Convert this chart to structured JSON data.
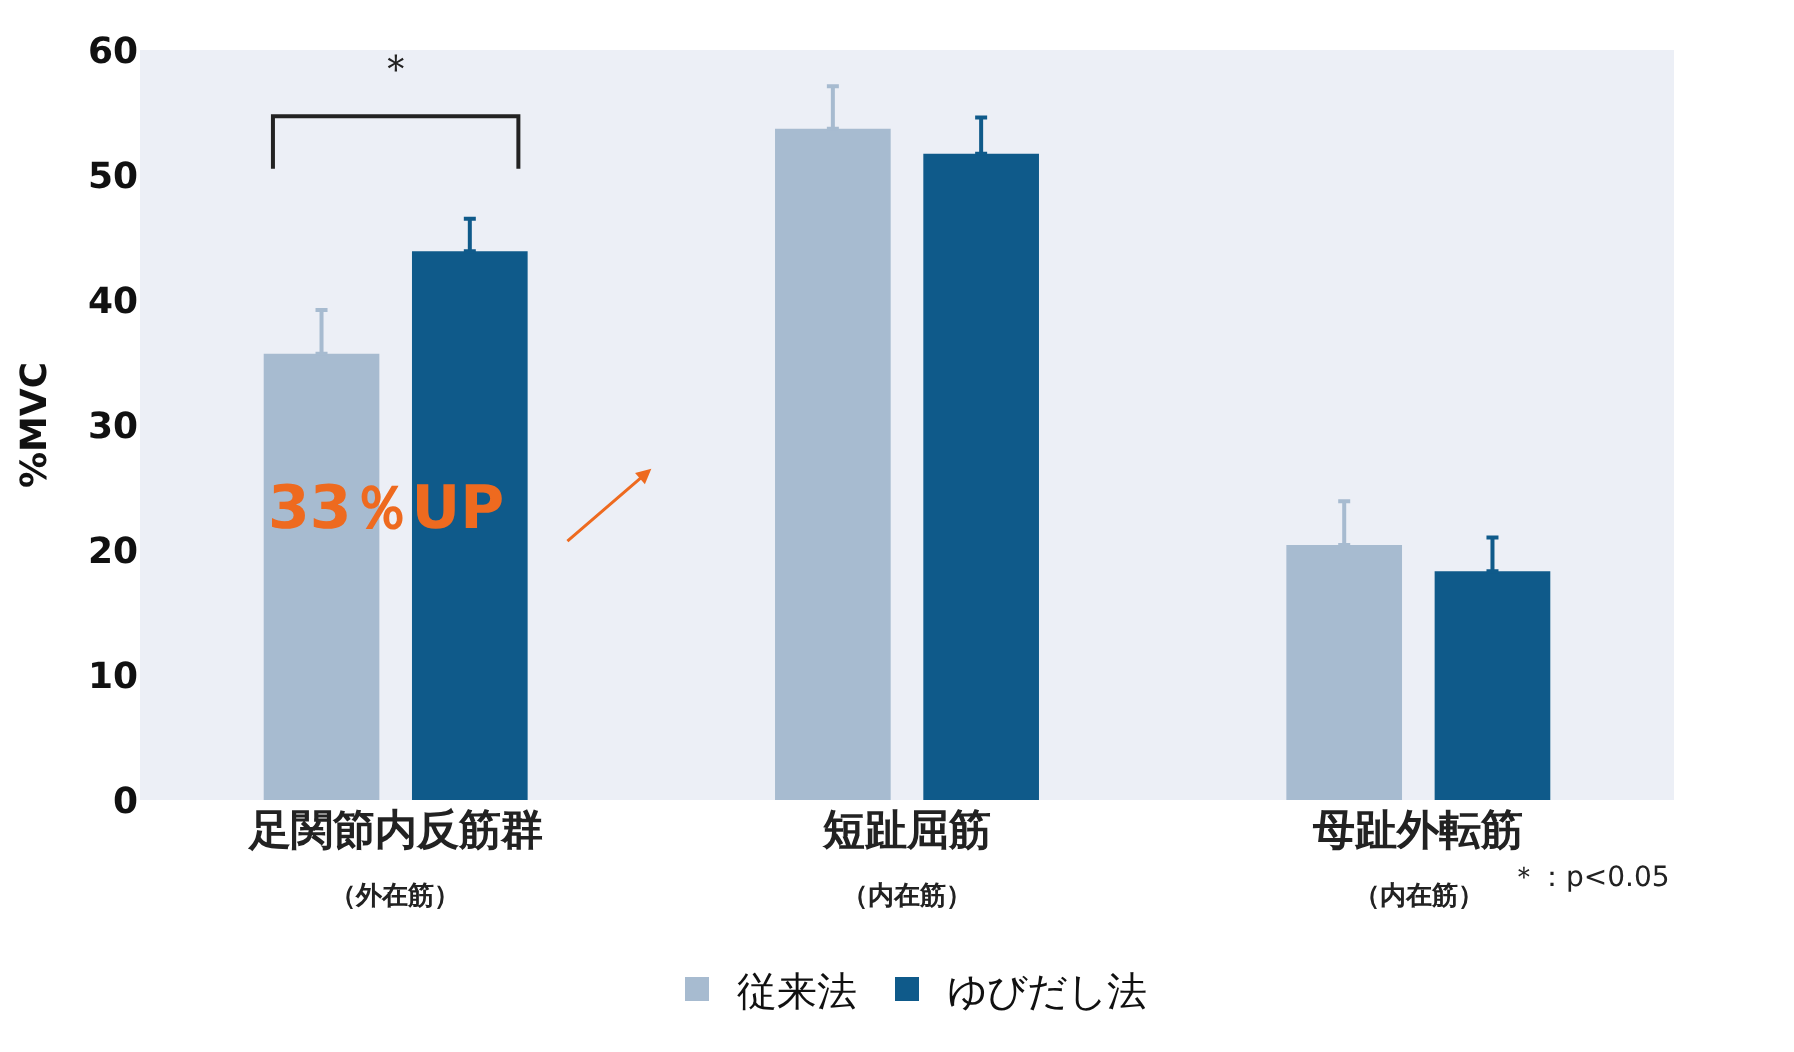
{
  "chart_data": {
    "type": "bar",
    "ylabel": "%MVC",
    "categories": [
      "足関節内反筋群",
      "短趾屈筋",
      "母趾外転筋"
    ],
    "series": [
      {
        "name": "従来法",
        "color": "#a7bbd0",
        "values": [
          35.7,
          53.7,
          20.4
        ],
        "errors": [
          [
            35.7,
            39.2
          ],
          [
            53.7,
            57.1
          ],
          [
            20.4,
            23.9
          ]
        ]
      },
      {
        "name": "ゆびだし法",
        "color": "#0f5a8a",
        "values": [
          43.9,
          51.7,
          18.3
        ],
        "errors": [
          [
            43.9,
            46.5
          ],
          [
            51.7,
            54.6
          ],
          [
            18.3,
            21.0
          ]
        ]
      }
    ],
    "ylim": [
      0,
      60
    ],
    "yticks": [
      0,
      10,
      20,
      30,
      40,
      50,
      60
    ],
    "grid": false,
    "legend": "bottom",
    "annotations": [
      "＊",
      "33％UP",
      "＊：p<0.05",
      "（外在筋）",
      "（内在筋）",
      "（内在筋）"
    ]
  }
}
